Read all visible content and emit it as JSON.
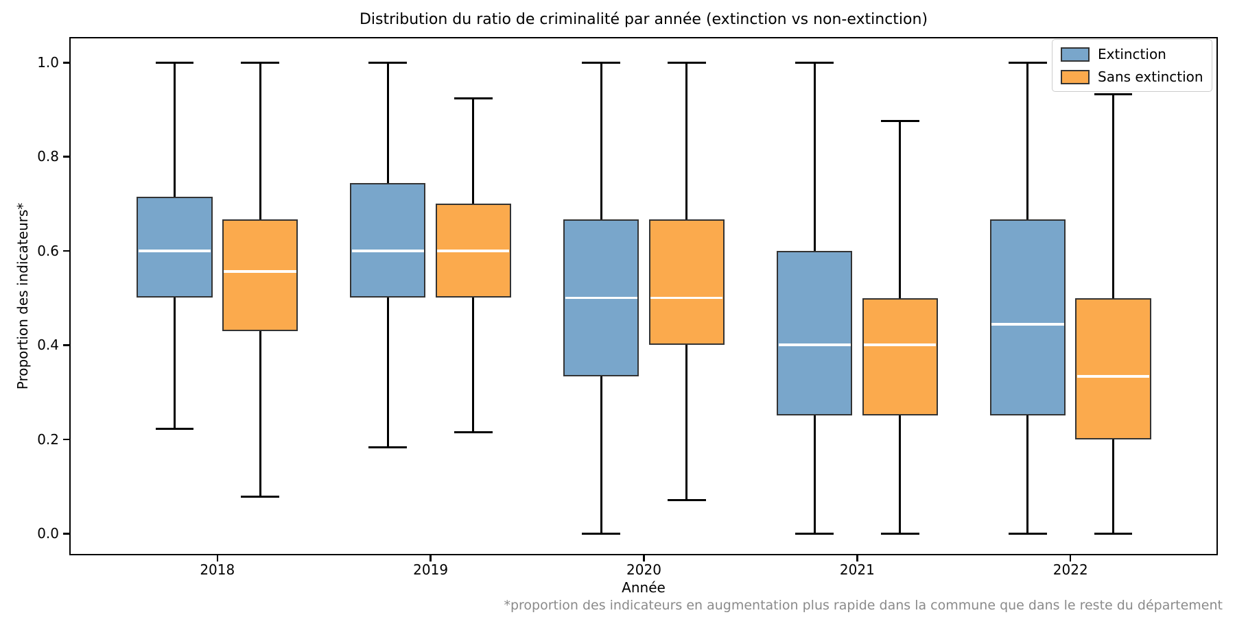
{
  "chart_data": {
    "type": "boxplot",
    "title": "Distribution du ratio de criminalité par année (extinction vs non-extinction)",
    "xlabel": "Année",
    "ylabel": "Proportion des indicateurs*",
    "footnote": "*proportion des indicateurs en augmentation plus rapide dans la commune que dans le reste du département",
    "categories": [
      "2018",
      "2019",
      "2020",
      "2021",
      "2022"
    ],
    "ytick_labels": [
      "0.0",
      "0.2",
      "0.4",
      "0.6",
      "0.8",
      "1.0"
    ],
    "ylim": [
      0,
      1
    ],
    "grid": false,
    "legend_position": "upper right",
    "series": [
      {
        "name": "Extinction",
        "color": "#79a6cb",
        "boxes": [
          {
            "year": "2018",
            "whislo": 0.222,
            "q1": 0.5,
            "med": 0.6,
            "q3": 0.714,
            "whishi": 1.0
          },
          {
            "year": "2019",
            "whislo": 0.182,
            "q1": 0.5,
            "med": 0.6,
            "q3": 0.744,
            "whishi": 1.0
          },
          {
            "year": "2020",
            "whislo": 0.0,
            "q1": 0.333,
            "med": 0.5,
            "q3": 0.667,
            "whishi": 1.0
          },
          {
            "year": "2021",
            "whislo": 0.0,
            "q1": 0.25,
            "med": 0.4,
            "q3": 0.6,
            "whishi": 1.0
          },
          {
            "year": "2022",
            "whislo": 0.0,
            "q1": 0.25,
            "med": 0.444,
            "q3": 0.667,
            "whishi": 1.0
          }
        ]
      },
      {
        "name": "Sans extinction",
        "color": "#fbaa4d",
        "boxes": [
          {
            "year": "2018",
            "whislo": 0.078,
            "q1": 0.429,
            "med": 0.556,
            "q3": 0.667,
            "whishi": 1.0
          },
          {
            "year": "2019",
            "whislo": 0.214,
            "q1": 0.5,
            "med": 0.6,
            "q3": 0.7,
            "whishi": 0.923
          },
          {
            "year": "2020",
            "whislo": 0.071,
            "q1": 0.4,
            "med": 0.5,
            "q3": 0.667,
            "whishi": 1.0
          },
          {
            "year": "2021",
            "whislo": 0.0,
            "q1": 0.25,
            "med": 0.4,
            "q3": 0.5,
            "whishi": 0.875
          },
          {
            "year": "2022",
            "whislo": 0.0,
            "q1": 0.2,
            "med": 0.333,
            "q3": 0.5,
            "whishi": 0.933
          }
        ]
      }
    ],
    "style": {
      "median_color": "#ffffff",
      "box_edge_color": "#333333",
      "whisker_color": "#000000"
    }
  }
}
